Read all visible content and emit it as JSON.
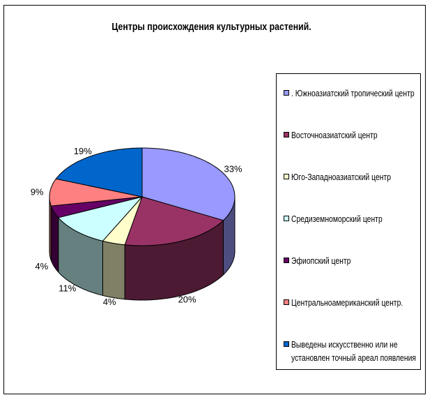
{
  "chart_data": {
    "type": "pie",
    "title": "Центры происхождения культурных растений.",
    "three_d": true,
    "legend_position": "right",
    "slices": [
      {
        "label": ". Южноазиатский тропический центр",
        "value": 33,
        "pct_label": "33%",
        "color": "#9999ff",
        "side_color": "#4d4d80"
      },
      {
        "label": "Восточноазиатский центр",
        "value": 20,
        "pct_label": "20%",
        "color": "#993366",
        "side_color": "#4d1a33"
      },
      {
        "label": "Юго-Западноазиатский центр",
        "value": 4,
        "pct_label": "4%",
        "color": "#ffffcc",
        "side_color": "#808066"
      },
      {
        "label": "Средиземноморский центр",
        "value": 11,
        "pct_label": "11%",
        "color": "#ccffff",
        "side_color": "#668080"
      },
      {
        "label": "Эфиопский центр",
        "value": 4,
        "pct_label": "4%",
        "color": "#660066",
        "side_color": "#330033"
      },
      {
        "label": "Центральноамериканский центр.",
        "value": 9,
        "pct_label": "9%",
        "color": "#ff8080",
        "side_color": "#804040"
      },
      {
        "label_line1": "Выведены искусственно или не",
        "label_line2": "установлен точный ареал появления",
        "value": 19,
        "pct_label": "19%",
        "color": "#0066cc",
        "side_color": "#003366"
      }
    ]
  }
}
